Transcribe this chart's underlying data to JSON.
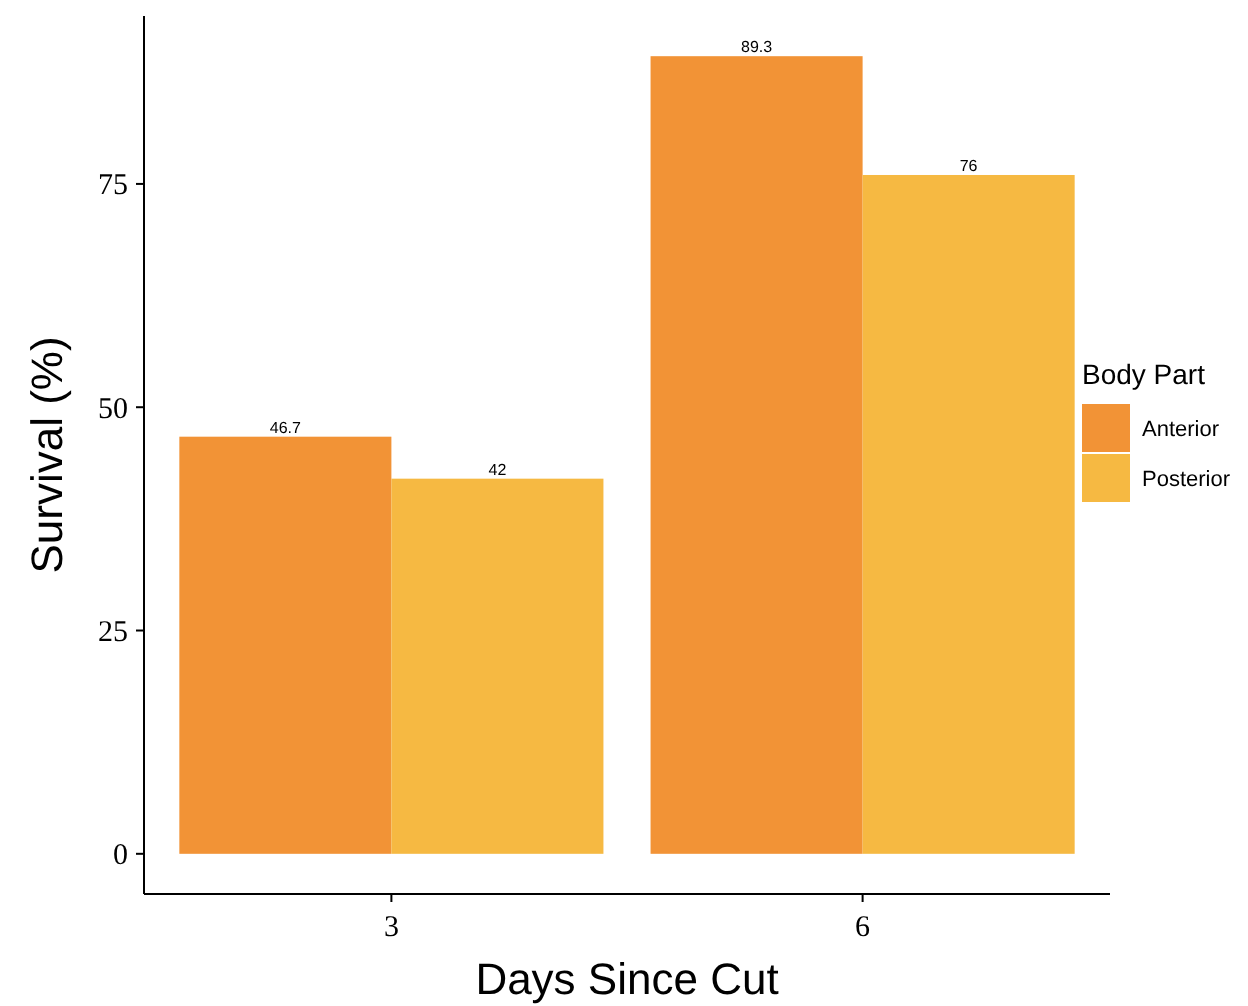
{
  "chart_data": {
    "type": "bar",
    "xlabel": "Days Since Cut",
    "ylabel": "Survival (%)",
    "legend_title": "Body Part",
    "categories": [
      "3",
      "6"
    ],
    "series": [
      {
        "name": "Anterior",
        "color": "#f29336",
        "values": [
          46.7,
          89.3
        ]
      },
      {
        "name": "Posterior",
        "color": "#f6b942",
        "values": [
          42,
          76
        ]
      }
    ],
    "ylim": [
      -4.5,
      93.8
    ],
    "yticks": [
      0,
      25,
      50,
      75
    ],
    "data_labels": true,
    "legend": "right",
    "grid": false
  }
}
